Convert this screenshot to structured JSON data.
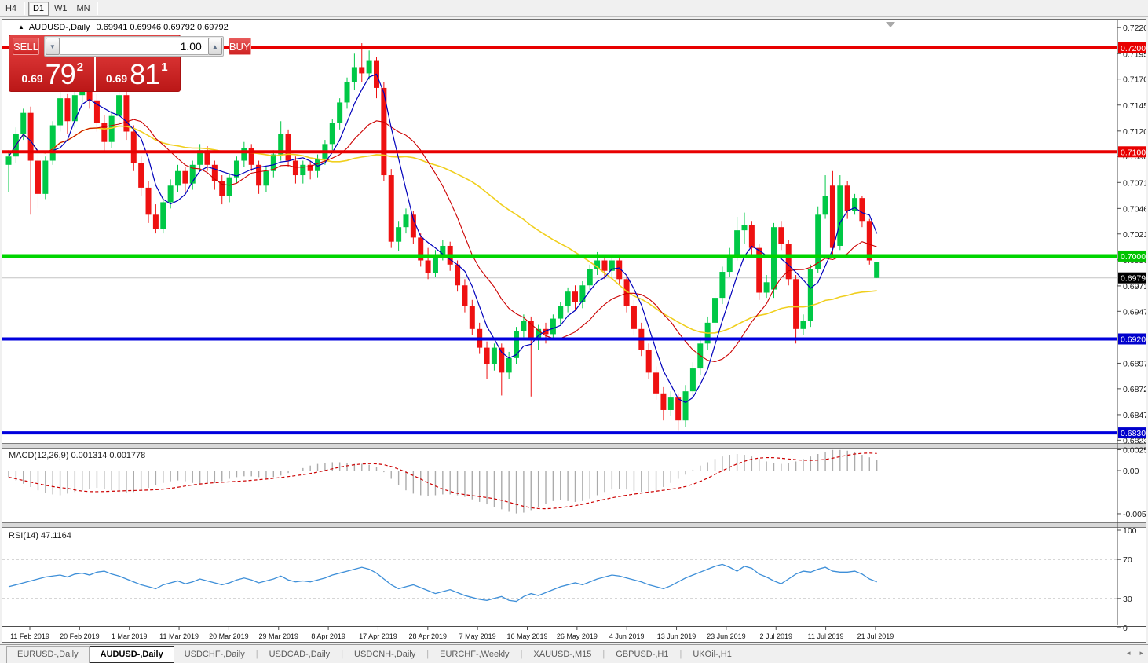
{
  "toolbar": {
    "timeframes": [
      {
        "label": "H4",
        "active": false
      },
      {
        "label": "D1",
        "active": true
      },
      {
        "label": "W1",
        "active": false
      },
      {
        "label": "MN",
        "active": false
      }
    ]
  },
  "chart": {
    "symbol_arrow": "▲",
    "symbol_label": "AUDUSD-,Daily",
    "title_ohlc": "0.69941 0.69946 0.69792 0.69792"
  },
  "order_panel": {
    "sell_label": "SELL",
    "buy_label": "BUY",
    "volume_value": "1.00",
    "spin_down_icon": "▼",
    "spin_up_icon": "▲",
    "sell_price_small": "0.69",
    "sell_price_big": "79",
    "sell_price_sup": "2",
    "buy_price_small": "0.69",
    "buy_price_big": "81",
    "buy_price_sup": "1"
  },
  "tabs": [
    {
      "label": "EURUSD-,Daily",
      "active": false
    },
    {
      "label": "AUDUSD-,Daily",
      "active": true
    },
    {
      "label": "USDCHF-,Daily",
      "active": false
    },
    {
      "label": "USDCAD-,Daily",
      "active": false
    },
    {
      "label": "USDCNH-,Daily",
      "active": false
    },
    {
      "label": "EURCHF-,Weekly",
      "active": false
    },
    {
      "label": "XAUUSD-,M15",
      "active": false
    },
    {
      "label": "GBPUSD-,H1",
      "active": false
    },
    {
      "label": "UKOil-,H1",
      "active": false
    }
  ],
  "tab_scroll": {
    "left_icon": "◂",
    "right_icon": "▸"
  },
  "chart_data": {
    "type": "candlestick",
    "symbol": "AUDUSD-,Daily",
    "colors": {
      "bull": "#00c846",
      "bear": "#ee1111",
      "ma_fast": "#0000bb",
      "ma_mid": "#cc0000",
      "ma_slow": "#f0cf1e",
      "macd_hist": "#ababab",
      "macd_signal": "#cc0000",
      "rsi_line": "#3e8fd8",
      "grid_current": "#c4c4c4"
    },
    "levels": [
      {
        "price": 0.72005,
        "color": "#e80000",
        "width": 4,
        "badge_bg": "#e80000",
        "label": "0.72005"
      },
      {
        "price": 0.71005,
        "color": "#e80000",
        "width": 4,
        "badge_bg": "#e80000",
        "label": "0.71005"
      },
      {
        "price": 0.70002,
        "color": "#00d500",
        "width": 5,
        "badge_bg": "#00c400",
        "label": "0.70002"
      },
      {
        "price": 0.69204,
        "color": "#0000dd",
        "width": 4,
        "badge_bg": "#0000cc",
        "label": "0.69204"
      },
      {
        "price": 0.683,
        "color": "#0000dd",
        "width": 4,
        "badge_bg": "#0000cc",
        "label": "0.68300"
      }
    ],
    "current_price": {
      "value": 0.69792,
      "label": "0.69792",
      "badge_bg": "#000000"
    },
    "price_axis_ticks": [
      0.722,
      0.7195,
      0.71705,
      0.71455,
      0.71205,
      0.7096,
      0.7071,
      0.7046,
      0.70215,
      0.69965,
      0.69715,
      0.6947,
      0.6897,
      0.68725,
      0.68475,
      0.6823
    ],
    "x_labels": [
      "11 Feb 2019",
      "20 Feb 2019",
      "1 Mar 2019",
      "11 Mar 2019",
      "20 Mar 2019",
      "29 Mar 2019",
      "8 Apr 2019",
      "17 Apr 2019",
      "28 Apr 2019",
      "7 May 2019",
      "16 May 2019",
      "26 May 2019",
      "4 Jun 2019",
      "13 Jun 2019",
      "23 Jun 2019",
      "2 Jul 2019",
      "11 Jul 2019",
      "21 Jul 2019"
    ],
    "candles": [
      [
        0.7088,
        0.7102,
        0.7062,
        0.7096
      ],
      [
        0.7096,
        0.7124,
        0.709,
        0.7118
      ],
      [
        0.7118,
        0.7142,
        0.7112,
        0.7138
      ],
      [
        0.7138,
        0.7144,
        0.704,
        0.7092
      ],
      [
        0.7092,
        0.7098,
        0.7046,
        0.706
      ],
      [
        0.706,
        0.7096,
        0.7055,
        0.7092
      ],
      [
        0.7092,
        0.713,
        0.7088,
        0.7126
      ],
      [
        0.7126,
        0.7158,
        0.712,
        0.7152
      ],
      [
        0.7152,
        0.7156,
        0.7118,
        0.713
      ],
      [
        0.713,
        0.716,
        0.7124,
        0.7155
      ],
      [
        0.7155,
        0.7176,
        0.7148,
        0.7168
      ],
      [
        0.7168,
        0.718,
        0.7142,
        0.715
      ],
      [
        0.715,
        0.7156,
        0.712,
        0.7128
      ],
      [
        0.7128,
        0.7136,
        0.71,
        0.711
      ],
      [
        0.711,
        0.714,
        0.7104,
        0.7135
      ],
      [
        0.7135,
        0.718,
        0.7128,
        0.7155
      ],
      [
        0.7155,
        0.716,
        0.7112,
        0.712
      ],
      [
        0.712,
        0.7126,
        0.7082,
        0.709
      ],
      [
        0.709,
        0.7096,
        0.7058,
        0.7066
      ],
      [
        0.7066,
        0.7072,
        0.7032,
        0.704
      ],
      [
        0.704,
        0.705,
        0.7022,
        0.7026
      ],
      [
        0.7026,
        0.7056,
        0.7022,
        0.7052
      ],
      [
        0.7052,
        0.7074,
        0.7046,
        0.7068
      ],
      [
        0.7068,
        0.7088,
        0.7062,
        0.7082
      ],
      [
        0.7082,
        0.7086,
        0.7062,
        0.707
      ],
      [
        0.707,
        0.7092,
        0.7064,
        0.7088
      ],
      [
        0.7088,
        0.7108,
        0.7082,
        0.7102
      ],
      [
        0.7102,
        0.7106,
        0.7082,
        0.7088
      ],
      [
        0.7088,
        0.7092,
        0.7064,
        0.7072
      ],
      [
        0.7072,
        0.7078,
        0.705,
        0.7058
      ],
      [
        0.7058,
        0.708,
        0.7052,
        0.7076
      ],
      [
        0.7076,
        0.7096,
        0.707,
        0.7092
      ],
      [
        0.7092,
        0.711,
        0.7086,
        0.7104
      ],
      [
        0.7104,
        0.7108,
        0.7082,
        0.7088
      ],
      [
        0.7088,
        0.7092,
        0.706,
        0.7068
      ],
      [
        0.7068,
        0.7086,
        0.7062,
        0.7082
      ],
      [
        0.7082,
        0.7102,
        0.7076,
        0.7098
      ],
      [
        0.7098,
        0.713,
        0.7092,
        0.7118
      ],
      [
        0.7118,
        0.7122,
        0.7086,
        0.7092
      ],
      [
        0.7092,
        0.7096,
        0.707,
        0.7078
      ],
      [
        0.7078,
        0.7092,
        0.707,
        0.7088
      ],
      [
        0.7088,
        0.7092,
        0.7074,
        0.7082
      ],
      [
        0.7082,
        0.7098,
        0.7076,
        0.7094
      ],
      [
        0.7094,
        0.7112,
        0.7088,
        0.7108
      ],
      [
        0.7108,
        0.7132,
        0.7102,
        0.7128
      ],
      [
        0.7128,
        0.7152,
        0.7122,
        0.7148
      ],
      [
        0.7148,
        0.7172,
        0.7142,
        0.7168
      ],
      [
        0.7168,
        0.7195,
        0.716,
        0.7182
      ],
      [
        0.7182,
        0.7205,
        0.7168,
        0.7176
      ],
      [
        0.7176,
        0.7198,
        0.717,
        0.7188
      ],
      [
        0.7188,
        0.7192,
        0.7152,
        0.7162
      ],
      [
        0.7162,
        0.7168,
        0.7072,
        0.7078
      ],
      [
        0.7078,
        0.7084,
        0.7008,
        0.7014
      ],
      [
        0.7014,
        0.7034,
        0.7005,
        0.7028
      ],
      [
        0.7028,
        0.7046,
        0.7022,
        0.704
      ],
      [
        0.704,
        0.7044,
        0.7012,
        0.7018
      ],
      [
        0.7018,
        0.7022,
        0.699,
        0.6996
      ],
      [
        0.6996,
        0.7008,
        0.6978,
        0.6984
      ],
      [
        0.6984,
        0.7006,
        0.698,
        0.7002
      ],
      [
        0.7002,
        0.7016,
        0.6996,
        0.701
      ],
      [
        0.701,
        0.7014,
        0.6986,
        0.6992
      ],
      [
        0.6992,
        0.6996,
        0.6966,
        0.6972
      ],
      [
        0.6972,
        0.6978,
        0.6946,
        0.6952
      ],
      [
        0.6952,
        0.6958,
        0.6924,
        0.693
      ],
      [
        0.693,
        0.6936,
        0.6906,
        0.6912
      ],
      [
        0.6912,
        0.6918,
        0.6882,
        0.6896
      ],
      [
        0.6896,
        0.6916,
        0.689,
        0.6912
      ],
      [
        0.6912,
        0.6916,
        0.6866,
        0.6888
      ],
      [
        0.6888,
        0.6908,
        0.6882,
        0.6902
      ],
      [
        0.6902,
        0.6932,
        0.6896,
        0.6928
      ],
      [
        0.6928,
        0.6944,
        0.6922,
        0.6938
      ],
      [
        0.6938,
        0.6942,
        0.6865,
        0.692
      ],
      [
        0.692,
        0.6934,
        0.691,
        0.693
      ],
      [
        0.693,
        0.6936,
        0.6916,
        0.6925
      ],
      [
        0.6925,
        0.6944,
        0.692,
        0.694
      ],
      [
        0.694,
        0.6956,
        0.6934,
        0.6952
      ],
      [
        0.6952,
        0.697,
        0.6946,
        0.6966
      ],
      [
        0.6966,
        0.6972,
        0.6948,
        0.6956
      ],
      [
        0.6956,
        0.6976,
        0.695,
        0.6972
      ],
      [
        0.6972,
        0.6992,
        0.6966,
        0.6988
      ],
      [
        0.6988,
        0.7004,
        0.6982,
        0.6996
      ],
      [
        0.6996,
        0.7002,
        0.6978,
        0.6986
      ],
      [
        0.6986,
        0.7,
        0.698,
        0.6996
      ],
      [
        0.6996,
        0.7,
        0.6972,
        0.6978
      ],
      [
        0.6978,
        0.6982,
        0.6946,
        0.6952
      ],
      [
        0.6952,
        0.6958,
        0.6924,
        0.693
      ],
      [
        0.693,
        0.6936,
        0.6904,
        0.691
      ],
      [
        0.691,
        0.6916,
        0.6882,
        0.6888
      ],
      [
        0.6888,
        0.6894,
        0.6862,
        0.6868
      ],
      [
        0.6868,
        0.6874,
        0.6842,
        0.6852
      ],
      [
        0.6852,
        0.687,
        0.6846,
        0.6864
      ],
      [
        0.6864,
        0.6868,
        0.6832,
        0.6842
      ],
      [
        0.6842,
        0.6876,
        0.6836,
        0.687
      ],
      [
        0.687,
        0.6898,
        0.6864,
        0.6892
      ],
      [
        0.6892,
        0.6922,
        0.6886,
        0.6916
      ],
      [
        0.6916,
        0.6942,
        0.691,
        0.6936
      ],
      [
        0.6936,
        0.6966,
        0.693,
        0.696
      ],
      [
        0.696,
        0.699,
        0.6954,
        0.6985
      ],
      [
        0.6985,
        0.7008,
        0.698,
        0.7
      ],
      [
        0.7,
        0.7038,
        0.6996,
        0.7025
      ],
      [
        0.7025,
        0.7042,
        0.7012,
        0.703
      ],
      [
        0.703,
        0.7034,
        0.7002,
        0.7008
      ],
      [
        0.7008,
        0.7012,
        0.6958,
        0.6965
      ],
      [
        0.6965,
        0.6982,
        0.696,
        0.6975
      ],
      [
        0.6968,
        0.7032,
        0.696,
        0.7028
      ],
      [
        0.7028,
        0.7034,
        0.7006,
        0.7012
      ],
      [
        0.7012,
        0.7016,
        0.6972,
        0.6978
      ],
      [
        0.6978,
        0.6982,
        0.6916,
        0.693
      ],
      [
        0.693,
        0.6944,
        0.6924,
        0.6938
      ],
      [
        0.6938,
        0.6992,
        0.6932,
        0.6988
      ],
      [
        0.6988,
        0.7048,
        0.6984,
        0.704
      ],
      [
        0.704,
        0.7078,
        0.7036,
        0.7058
      ],
      [
        0.7068,
        0.7082,
        0.7002,
        0.7008
      ],
      [
        0.701,
        0.7078,
        0.7006,
        0.7068
      ],
      [
        0.7068,
        0.7072,
        0.7036,
        0.7044
      ],
      [
        0.7044,
        0.706,
        0.704,
        0.7056
      ],
      [
        0.7056,
        0.7058,
        0.7028,
        0.7034
      ],
      [
        0.7034,
        0.7036,
        0.6992,
        0.6996
      ],
      [
        0.69941,
        0.69946,
        0.69792,
        0.69792,
        1
      ]
    ],
    "ma_periods": {
      "fast": 5,
      "mid": 13,
      "slow": 34
    },
    "macd": {
      "label": "MACD(12,26,9)",
      "value_main": "0.001314",
      "value_signal": "0.001778",
      "axis_ticks": [
        {
          "v": 0.002522,
          "label": "0.002522"
        },
        {
          "v": 0.0,
          "label": "0.00"
        },
        {
          "v": -0.005234,
          "label": "-0.005234"
        }
      ],
      "hist": [
        -0.0008,
        -0.0012,
        -0.0016,
        -0.002,
        -0.0024,
        -0.0027,
        -0.0029,
        -0.003,
        -0.0028,
        -0.0026,
        -0.0024,
        -0.0022,
        -0.0021,
        -0.0022,
        -0.0024,
        -0.0026,
        -0.0027,
        -0.0026,
        -0.0024,
        -0.0021,
        -0.0018,
        -0.0015,
        -0.0013,
        -0.0012,
        -0.0013,
        -0.0015,
        -0.0016,
        -0.0016,
        -0.0015,
        -0.0013,
        -0.001,
        -0.0008,
        -0.0007,
        -0.0007,
        -0.0008,
        -0.0009,
        -0.0008,
        -0.0006,
        -0.0003,
        0.0,
        0.0003,
        0.0006,
        0.0008,
        0.0009,
        0.001,
        0.001,
        0.0009,
        0.0008,
        0.0008,
        0.0007,
        0.0004,
        -0.0002,
        -0.001,
        -0.0018,
        -0.0024,
        -0.0028,
        -0.003,
        -0.0031,
        -0.003,
        -0.0029,
        -0.0029,
        -0.003,
        -0.0032,
        -0.0035,
        -0.0038,
        -0.0041,
        -0.0044,
        -0.0047,
        -0.005,
        -0.0052,
        -0.0051,
        -0.0048,
        -0.0044,
        -0.004,
        -0.0037,
        -0.0036,
        -0.0037,
        -0.0038,
        -0.0037,
        -0.0034,
        -0.003,
        -0.0026,
        -0.0023,
        -0.0022,
        -0.0023,
        -0.0025,
        -0.0026,
        -0.0026,
        -0.0024,
        -0.002,
        -0.0015,
        -0.001,
        -0.0005,
        0.0001,
        0.0006,
        0.001,
        0.0014,
        0.0017,
        0.0019,
        0.002,
        0.0019,
        0.0017,
        0.0014,
        0.0011,
        0.0009,
        0.0008,
        0.0009,
        0.0011,
        0.0014,
        0.0017,
        0.002,
        0.0022,
        0.0025,
        0.0025,
        0.0024,
        0.0022,
        0.0019,
        0.0016,
        0.0013
      ]
    },
    "rsi": {
      "label": "RSI(14)",
      "value": "47.1164",
      "axis_ticks": [
        {
          "v": 100,
          "label": "100"
        },
        {
          "v": 70,
          "label": "70"
        },
        {
          "v": 30,
          "label": "30"
        },
        {
          "v": 0,
          "label": "0"
        }
      ],
      "dashed_levels": [
        70,
        30
      ],
      "values": [
        42,
        44,
        46,
        48,
        50,
        52,
        53,
        54,
        52,
        55,
        56,
        54,
        57,
        58,
        55,
        53,
        50,
        47,
        44,
        42,
        40,
        44,
        46,
        48,
        45,
        47,
        50,
        48,
        46,
        44,
        46,
        49,
        51,
        49,
        46,
        48,
        50,
        53,
        49,
        47,
        48,
        47,
        49,
        51,
        54,
        56,
        58,
        60,
        62,
        60,
        56,
        50,
        44,
        40,
        42,
        44,
        41,
        38,
        35,
        37,
        39,
        36,
        33,
        31,
        29,
        28,
        30,
        32,
        28,
        27,
        32,
        35,
        33,
        36,
        39,
        42,
        44,
        46,
        44,
        47,
        50,
        52,
        54,
        53,
        51,
        49,
        47,
        44,
        42,
        40,
        43,
        47,
        51,
        54,
        57,
        60,
        63,
        65,
        62,
        58,
        63,
        61,
        55,
        52,
        48,
        45,
        50,
        55,
        58,
        57,
        60,
        62,
        58,
        57,
        57,
        58,
        55,
        50,
        47
      ]
    }
  }
}
